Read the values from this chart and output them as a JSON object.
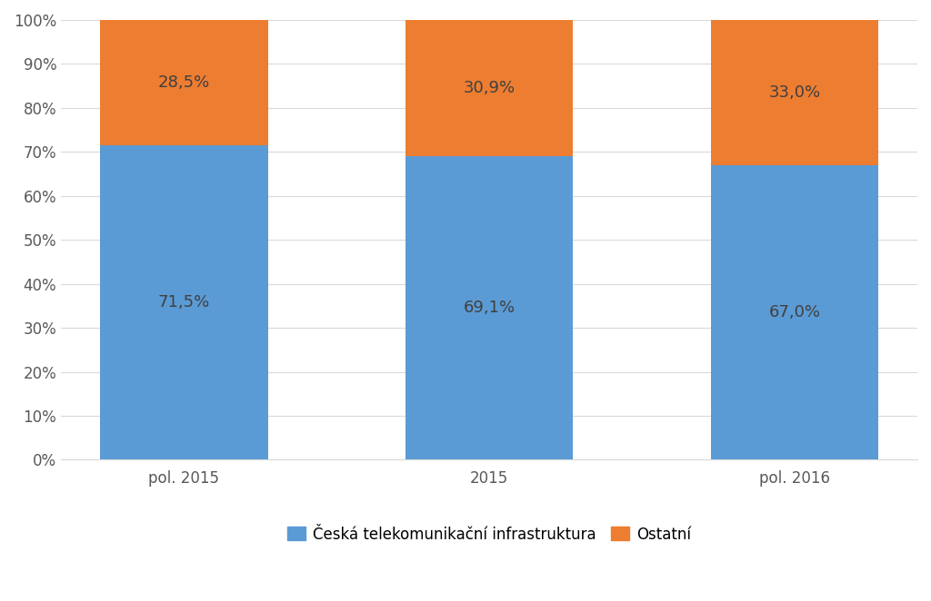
{
  "categories": [
    "pol. 2015",
    "2015",
    "pol. 2016"
  ],
  "blue_values": [
    71.5,
    69.1,
    67.0
  ],
  "orange_values": [
    28.5,
    30.9,
    33.0
  ],
  "blue_labels": [
    "71,5%",
    "69,1%",
    "67,0%"
  ],
  "orange_labels": [
    "28,5%",
    "30,9%",
    "33,0%"
  ],
  "blue_color": "#5B9BD5",
  "orange_color": "#ED7D31",
  "legend_blue": "Česká telekomunikační infrastruktura",
  "legend_orange": "Ostatní",
  "ylim": [
    0,
    100
  ],
  "yticks": [
    0,
    10,
    20,
    30,
    40,
    50,
    60,
    70,
    80,
    90,
    100
  ],
  "ytick_labels": [
    "0%",
    "10%",
    "20%",
    "30%",
    "40%",
    "50%",
    "60%",
    "70%",
    "80%",
    "90%",
    "100%"
  ],
  "bar_width": 0.55,
  "figsize": [
    10.24,
    6.62
  ],
  "dpi": 100,
  "label_fontsize": 13,
  "tick_fontsize": 12,
  "legend_fontsize": 12,
  "label_color": "#404040",
  "background_color": "#ffffff",
  "grid_color": "#D9D9D9"
}
